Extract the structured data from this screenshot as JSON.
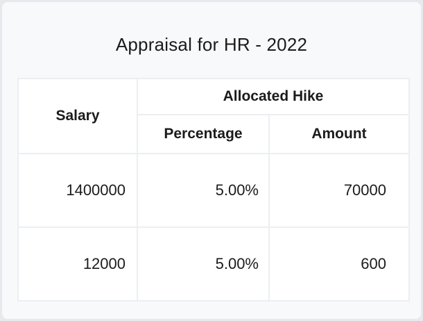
{
  "chart_data": {
    "type": "table",
    "title": "Appraisal for HR - 2022",
    "header": {
      "salary": "Salary",
      "group": "Allocated Hike",
      "sub": [
        "Percentage",
        "Amount"
      ]
    },
    "rows": [
      {
        "salary": "1400000",
        "percentage": "5.00%",
        "amount": "70000"
      },
      {
        "salary": "12000",
        "percentage": "5.00%",
        "amount": "600"
      }
    ],
    "rows_numeric": [
      {
        "salary": 1400000,
        "percentage": 5.0,
        "amount": 70000
      },
      {
        "salary": 12000,
        "percentage": 5.0,
        "amount": 600
      }
    ],
    "layout_hints": {
      "header_group_spans": "Allocated Hike spans Percentage and Amount; Salary spans both header rows",
      "value_alignment": "right",
      "header_alignment": "center"
    }
  },
  "colors": {
    "page_background": "#e8e9ec",
    "card_background": "#f8f9fb",
    "cell_background": "#ffffff",
    "grid_line": "#eceef1",
    "text": "#1b1b1b"
  }
}
